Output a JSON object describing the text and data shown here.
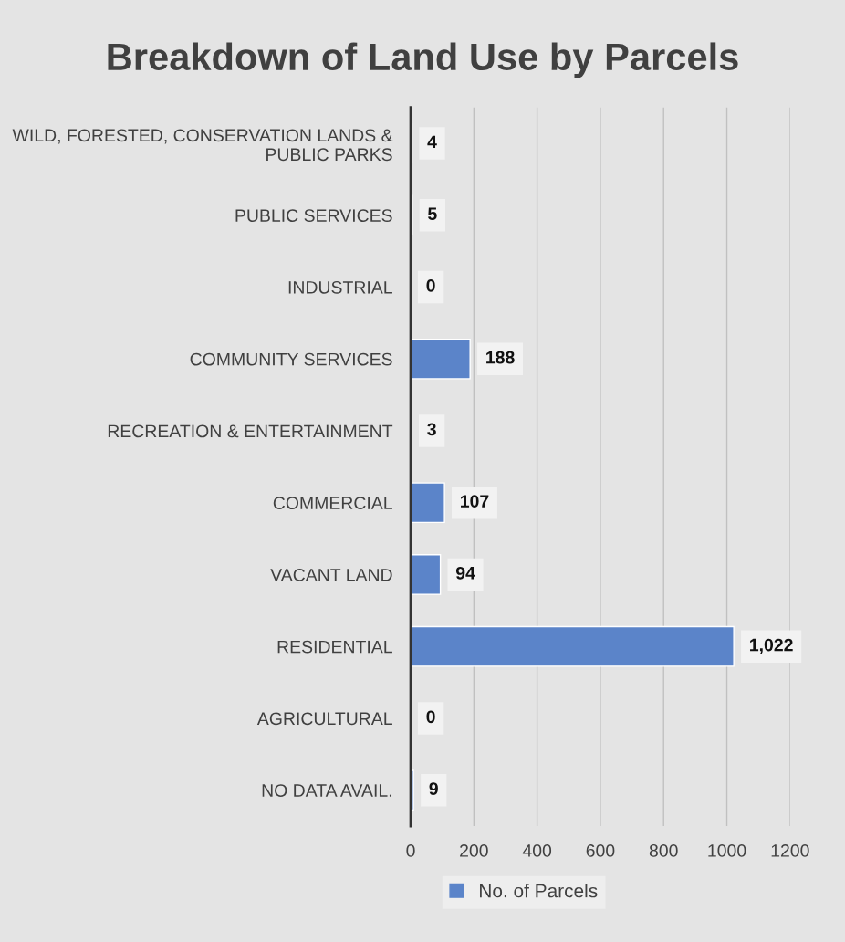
{
  "chart_data": {
    "type": "bar",
    "orientation": "horizontal",
    "title": "Breakdown of Land Use by Parcels",
    "categories": [
      "WILD, FORESTED, CONSERVATION LANDS & PUBLIC PARKS",
      "PUBLIC SERVICES",
      "INDUSTRIAL",
      "COMMUNITY SERVICES",
      "RECREATION & ENTERTAINMENT",
      "COMMERCIAL",
      "VACANT LAND",
      "RESIDENTIAL",
      "AGRICULTURAL",
      "NO DATA AVAIL."
    ],
    "series": [
      {
        "name": "No. of Parcels",
        "color": "#5b84c9",
        "values": [
          4,
          5,
          0,
          188,
          3,
          107,
          94,
          1022,
          0,
          9
        ],
        "value_labels": [
          "4",
          "5",
          "0",
          "188",
          "3",
          "107",
          "94",
          "1,022",
          "0",
          "9"
        ]
      }
    ],
    "xlim": [
      0,
      1200
    ],
    "xticks": [
      0,
      200,
      400,
      600,
      800,
      1000,
      1200
    ],
    "grid": "x",
    "legend": "bottom"
  }
}
